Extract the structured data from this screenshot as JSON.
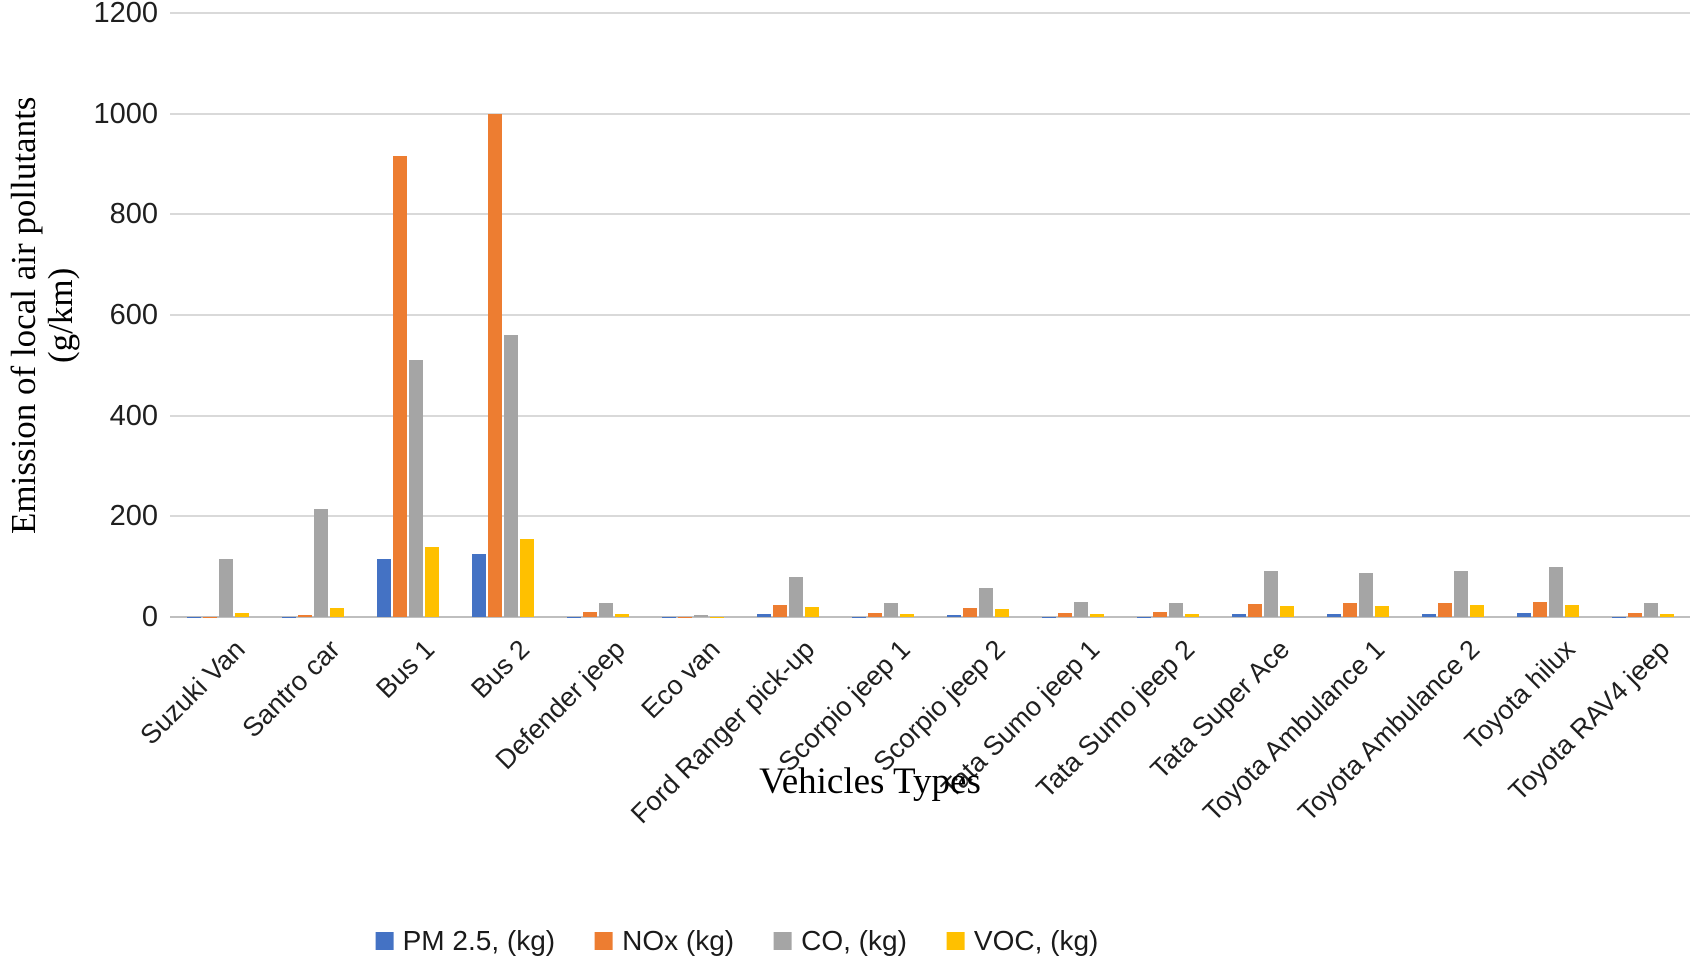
{
  "chart_data": {
    "type": "bar",
    "title": "",
    "xlabel": "Vehicles Types",
    "ylabel": "Emission of local air pollutants (g/km)",
    "ylabel_lines": [
      "Emission of local air pollutants",
      "(g/km)"
    ],
    "ylim": [
      0,
      1200
    ],
    "yticks": [
      0,
      200,
      400,
      600,
      800,
      1000,
      1200
    ],
    "grid": "horizontal-on",
    "legend_position": "bottom-center",
    "categories": [
      "Suzuki Van",
      "Santro car",
      "Bus 1",
      "Bus 2",
      "Defender jeep",
      "Eco van",
      "Ford Ranger pick-up",
      "Scorpio jeep 1",
      "Scorpio jeep 2",
      "Tata Sumo jeep 1",
      "Tata Sumo jeep 2",
      "Tata Super Ace",
      "Toyota Ambulance 1",
      "Toyota Ambulance 2",
      "Toyota hilux",
      "Toyota RAV4 jeep"
    ],
    "series": [
      {
        "name": "PM 2.5, (kg)",
        "color": "#4472C4",
        "values": [
          0.5,
          0.5,
          115,
          125,
          1,
          0.3,
          6,
          1,
          5,
          1,
          1,
          7,
          7,
          6,
          8,
          1
        ]
      },
      {
        "name": "NOx (kg)",
        "color": "#ED7D31",
        "values": [
          1,
          4,
          915,
          1000,
          10,
          1,
          24,
          8,
          18,
          9,
          10,
          26,
          27,
          27,
          30,
          9
        ]
      },
      {
        "name": "CO, (kg)",
        "color": "#A5A5A5",
        "values": [
          115,
          215,
          510,
          560,
          28,
          4,
          80,
          28,
          58,
          30,
          28,
          92,
          88,
          91,
          100,
          28
        ]
      },
      {
        "name": "VOC, (kg)",
        "color": "#FFC000",
        "values": [
          8,
          17,
          140,
          155,
          6,
          1,
          20,
          6,
          15,
          7,
          6,
          22,
          22,
          23,
          24,
          6
        ]
      }
    ]
  }
}
